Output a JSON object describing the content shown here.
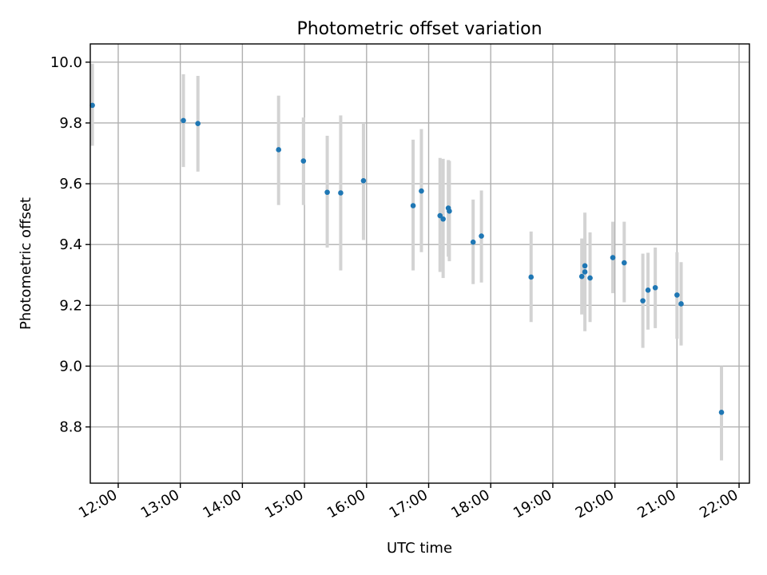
{
  "chart_data": {
    "type": "scatter",
    "title": "Photometric offset variation",
    "xlabel": "UTC time",
    "ylabel": "Photometric offset",
    "xlim": [
      "11:33",
      "22:10"
    ],
    "ylim": [
      8.615,
      10.06
    ],
    "xticks": [
      "12:00",
      "13:00",
      "14:00",
      "15:00",
      "16:00",
      "17:00",
      "18:00",
      "19:00",
      "20:00",
      "21:00",
      "22:00"
    ],
    "yticks": [
      "8.8",
      "9.0",
      "9.2",
      "9.4",
      "9.6",
      "9.8",
      "10.0"
    ],
    "grid": true,
    "marker_color": "#1f77b4",
    "errorbar_color": "#d3d3d3",
    "points": [
      {
        "x": "11:35",
        "y": 9.858,
        "ylow": 9.725,
        "yhigh": 9.995
      },
      {
        "x": "13:03",
        "y": 9.808,
        "ylow": 9.655,
        "yhigh": 9.96
      },
      {
        "x": "13:17",
        "y": 9.798,
        "ylow": 9.64,
        "yhigh": 9.955
      },
      {
        "x": "14:35",
        "y": 9.712,
        "ylow": 9.53,
        "yhigh": 9.89
      },
      {
        "x": "14:59",
        "y": 9.675,
        "ylow": 9.53,
        "yhigh": 9.818
      },
      {
        "x": "15:22",
        "y": 9.572,
        "ylow": 9.39,
        "yhigh": 9.758
      },
      {
        "x": "15:35",
        "y": 9.57,
        "ylow": 9.315,
        "yhigh": 9.825
      },
      {
        "x": "15:57",
        "y": 9.61,
        "ylow": 9.415,
        "yhigh": 9.8
      },
      {
        "x": "16:45",
        "y": 9.528,
        "ylow": 9.315,
        "yhigh": 9.745
      },
      {
        "x": "16:53",
        "y": 9.576,
        "ylow": 9.375,
        "yhigh": 9.78
      },
      {
        "x": "17:11",
        "y": 9.495,
        "ylow": 9.31,
        "yhigh": 9.685
      },
      {
        "x": "17:14",
        "y": 9.484,
        "ylow": 9.29,
        "yhigh": 9.682
      },
      {
        "x": "17:19",
        "y": 9.52,
        "ylow": 9.36,
        "yhigh": 9.678
      },
      {
        "x": "17:20",
        "y": 9.51,
        "ylow": 9.345,
        "yhigh": 9.675
      },
      {
        "x": "17:43",
        "y": 9.408,
        "ylow": 9.27,
        "yhigh": 9.548
      },
      {
        "x": "17:51",
        "y": 9.428,
        "ylow": 9.275,
        "yhigh": 9.578
      },
      {
        "x": "18:39",
        "y": 9.293,
        "ylow": 9.145,
        "yhigh": 9.443
      },
      {
        "x": "19:28",
        "y": 9.295,
        "ylow": 9.17,
        "yhigh": 9.42
      },
      {
        "x": "19:31",
        "y": 9.31,
        "ylow": 9.195,
        "yhigh": 9.425
      },
      {
        "x": "19:31",
        "y": 9.33,
        "ylow": 9.115,
        "yhigh": 9.505
      },
      {
        "x": "19:36",
        "y": 9.29,
        "ylow": 9.145,
        "yhigh": 9.44
      },
      {
        "x": "19:58",
        "y": 9.357,
        "ylow": 9.24,
        "yhigh": 9.475
      },
      {
        "x": "20:09",
        "y": 9.34,
        "ylow": 9.21,
        "yhigh": 9.475
      },
      {
        "x": "20:27",
        "y": 9.215,
        "ylow": 9.06,
        "yhigh": 9.37
      },
      {
        "x": "20:32",
        "y": 9.25,
        "ylow": 9.12,
        "yhigh": 9.373
      },
      {
        "x": "20:39",
        "y": 9.258,
        "ylow": 9.125,
        "yhigh": 9.39
      },
      {
        "x": "21:00",
        "y": 9.234,
        "ylow": 9.09,
        "yhigh": 9.375
      },
      {
        "x": "21:04",
        "y": 9.205,
        "ylow": 9.068,
        "yhigh": 9.342
      },
      {
        "x": "21:43",
        "y": 8.848,
        "ylow": 8.69,
        "yhigh": 9.0
      }
    ]
  }
}
